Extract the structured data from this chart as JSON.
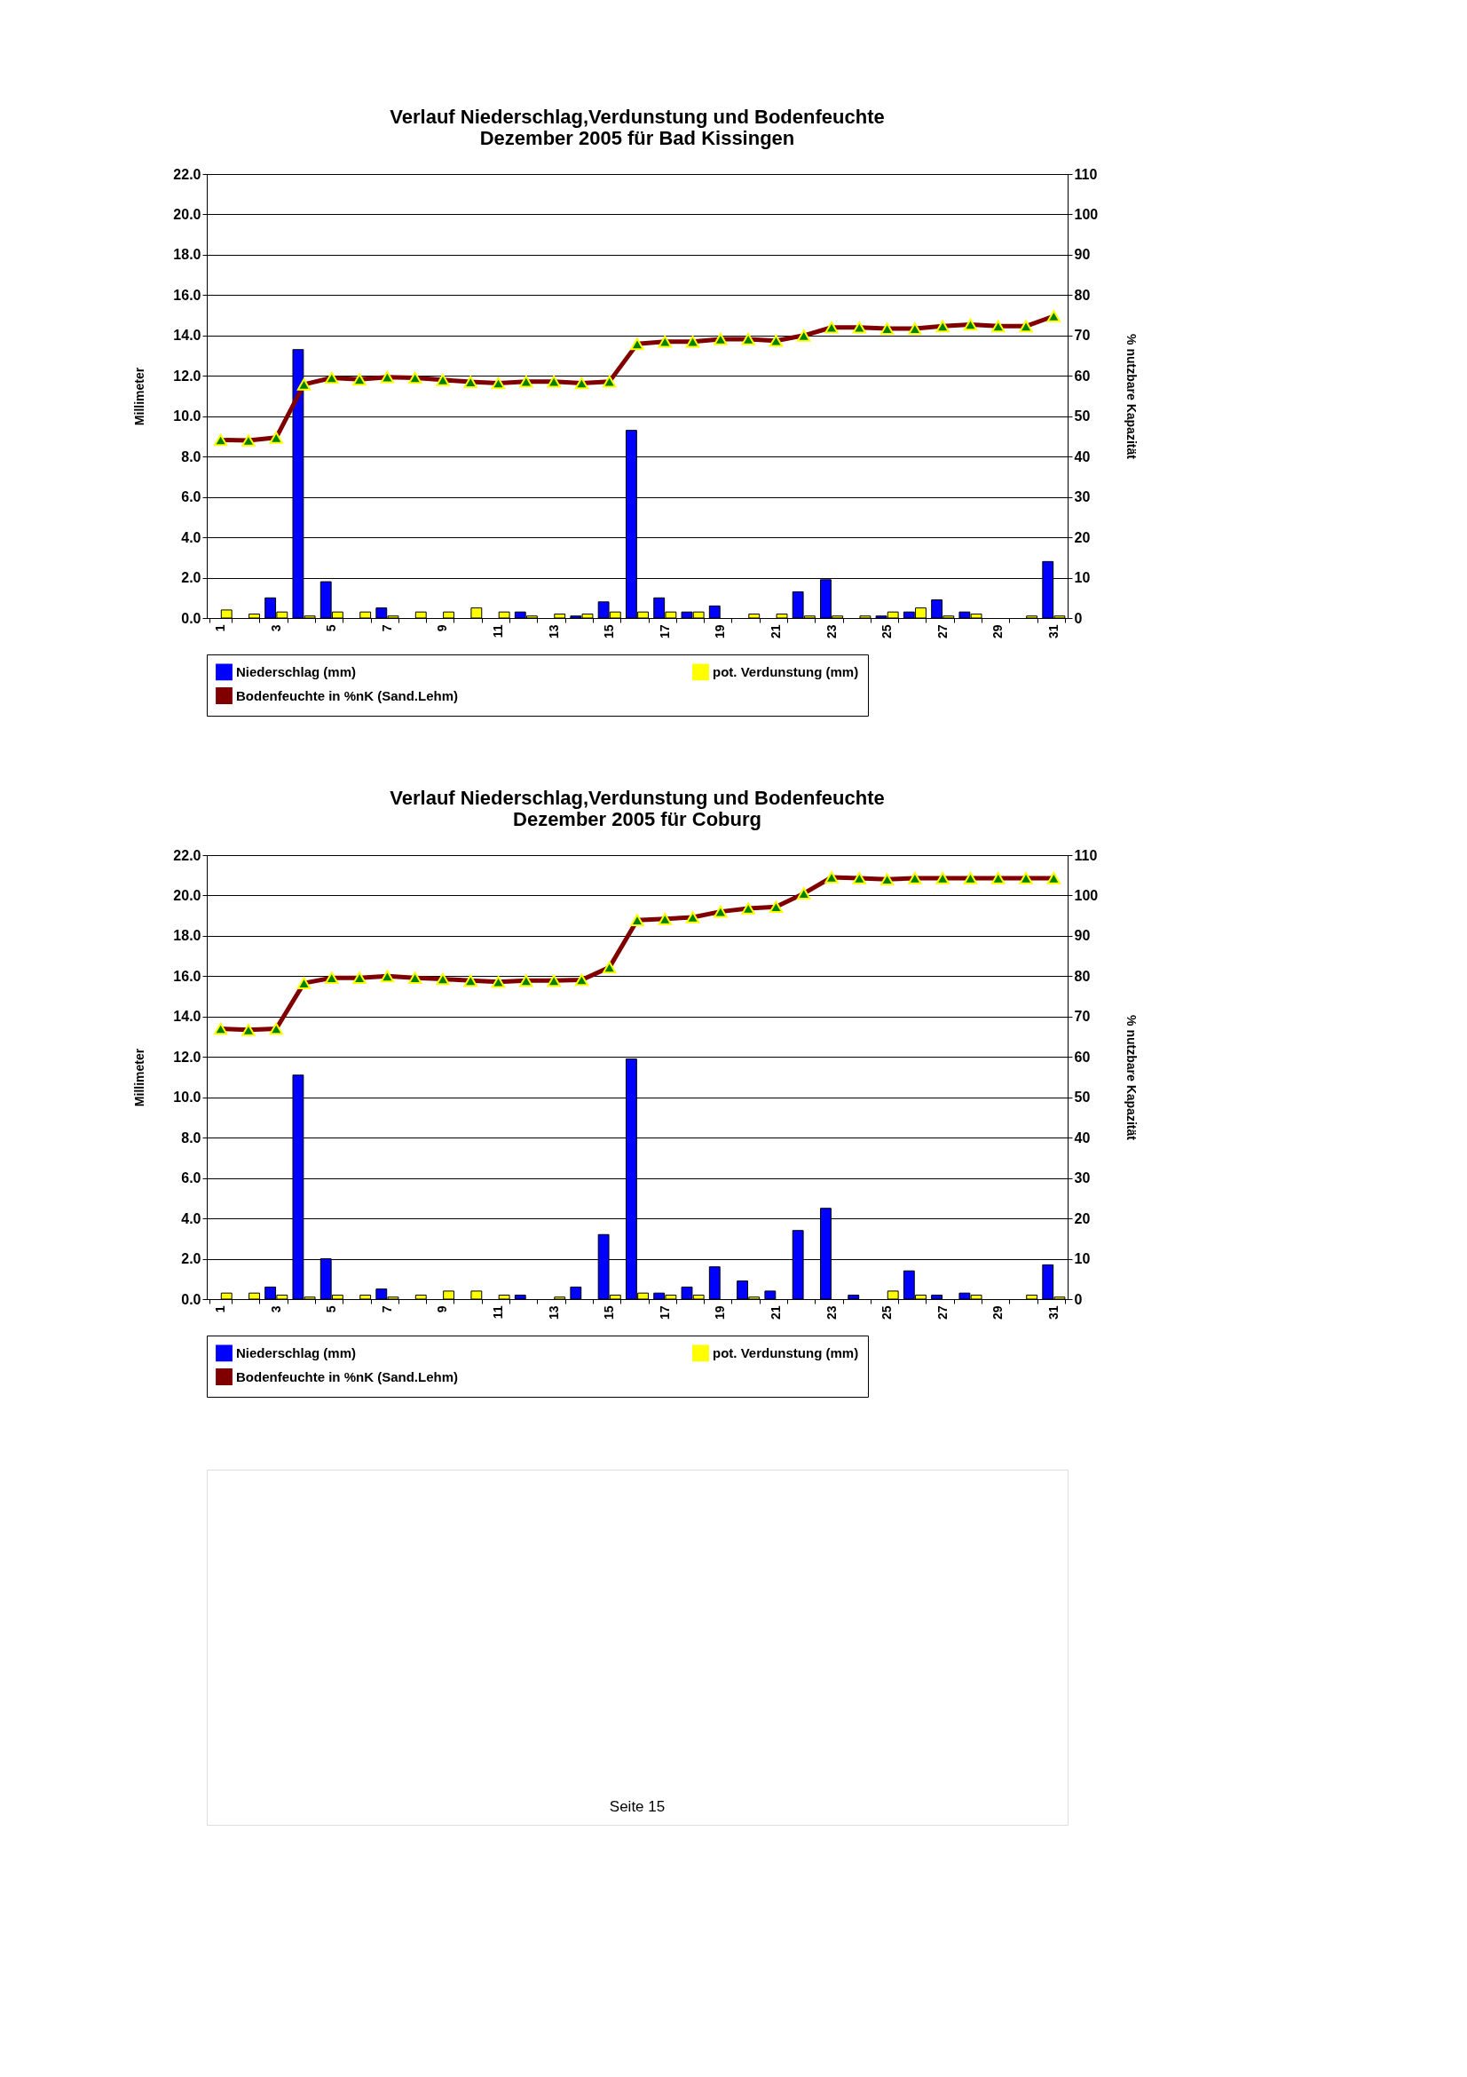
{
  "chart_data": [
    {
      "type": "bar",
      "title": "Verlauf Niederschlag,Verdunstung und Bodenfeuchte\nDezember  2005 für Bad Kissingen",
      "ylabel": "Millimeter",
      "y2label": "% nutzbare Kapazität",
      "categories": [
        "1",
        null,
        "3",
        null,
        "5",
        null,
        "7",
        null,
        "9",
        null,
        "11",
        null,
        "13",
        null,
        "15",
        null,
        "17",
        null,
        "19",
        null,
        "21",
        null,
        "23",
        null,
        "25",
        null,
        "27",
        null,
        "29",
        null,
        "31"
      ],
      "series": [
        {
          "name": "Niederschlag (mm)",
          "color": "#0000ff",
          "values": [
            0,
            0,
            1.0,
            13.3,
            1.8,
            0,
            0.5,
            0,
            0,
            0,
            0,
            0.3,
            0,
            0.1,
            0.8,
            9.3,
            1.0,
            0.3,
            0.6,
            0,
            0,
            1.3,
            1.9,
            0,
            0.1,
            0.3,
            0.9,
            0.3,
            0,
            0,
            2.8
          ]
        },
        {
          "name": "pot. Verdunstung (mm)",
          "color": "#ffff00",
          "values": [
            0.4,
            0.2,
            0.3,
            0.1,
            0.3,
            0.3,
            0.1,
            0.3,
            0.3,
            0.5,
            0.3,
            0.1,
            0.2,
            0.2,
            0.3,
            0.3,
            0.3,
            0.3,
            0,
            0.2,
            0.2,
            0.1,
            0.1,
            0.1,
            0.3,
            0.5,
            0.1,
            0.2,
            0,
            0.1,
            0.1
          ]
        },
        {
          "name": "Bodenfeuchte in %nK (Sand.Lehm)",
          "color": "#800000",
          "type": "line",
          "axis": "y2",
          "values": [
            44.1,
            44.0,
            44.7,
            57.9,
            59.5,
            59.1,
            59.7,
            59.5,
            59.0,
            58.5,
            58.2,
            58.6,
            58.6,
            58.2,
            58.6,
            67.9,
            68.5,
            68.5,
            69.1,
            69.1,
            68.7,
            70.0,
            72.0,
            72.0,
            71.7,
            71.7,
            72.3,
            72.7,
            72.3,
            72.3,
            74.8
          ]
        }
      ],
      "ylim": [
        0,
        22
      ],
      "yticks": [
        {
          "value": 0,
          "label": "0.0"
        },
        {
          "value": 2,
          "label": "2.0"
        },
        {
          "value": 4,
          "label": "4.0"
        },
        {
          "value": 6,
          "label": "6.0"
        },
        {
          "value": 8,
          "label": "8.0"
        },
        {
          "value": 10,
          "label": "10.0"
        },
        {
          "value": 12,
          "label": "12.0"
        },
        {
          "value": 14,
          "label": "14.0"
        },
        {
          "value": 16,
          "label": "16.0"
        },
        {
          "value": 18,
          "label": "18.0"
        },
        {
          "value": 20,
          "label": "20.0"
        },
        {
          "value": 22,
          "label": "22.0"
        }
      ],
      "y2lim": [
        0,
        110
      ],
      "y2ticks": [
        0,
        10,
        20,
        30,
        40,
        50,
        60,
        70,
        80,
        90,
        100,
        110
      ],
      "grid": "y",
      "legend": "bottom",
      "marker": "triangle"
    },
    {
      "type": "bar",
      "title": "Verlauf Niederschlag,Verdunstung und Bodenfeuchte\nDezember 2005 für Coburg",
      "ylabel": "Millimeter",
      "y2label": "% nutzbare Kapazität",
      "categories": [
        "1",
        null,
        "3",
        null,
        "5",
        null,
        "7",
        null,
        "9",
        null,
        "11",
        null,
        "13",
        null,
        "15",
        null,
        "17",
        null,
        "19",
        null,
        "21",
        null,
        "23",
        null,
        "25",
        null,
        "27",
        null,
        "29",
        null,
        "31"
      ],
      "series": [
        {
          "name": "Niederschlag (mm)",
          "color": "#0000ff",
          "values": [
            0,
            0,
            0.6,
            11.1,
            2.0,
            0,
            0.5,
            0,
            0,
            0,
            0,
            0.2,
            0,
            0.6,
            3.2,
            11.9,
            0.3,
            0.6,
            1.6,
            0.9,
            0.4,
            3.4,
            4.5,
            0.2,
            0,
            1.4,
            0.2,
            0.3,
            0,
            0,
            1.7
          ]
        },
        {
          "name": "pot. Verdunstung (mm)",
          "color": "#ffff00",
          "values": [
            0.3,
            0.3,
            0.2,
            0.1,
            0.2,
            0.2,
            0.1,
            0.2,
            0.4,
            0.4,
            0.2,
            0,
            0.1,
            0,
            0.2,
            0.3,
            0.2,
            0.2,
            0,
            0.1,
            0,
            0,
            0,
            0,
            0.4,
            0.2,
            0,
            0.2,
            0,
            0.2,
            0.1
          ]
        },
        {
          "name": "Bodenfeuchte in %nK (Sand.Lehm)",
          "color": "#800000",
          "type": "line",
          "axis": "y2",
          "values": [
            67.0,
            66.7,
            67.0,
            78.3,
            79.6,
            79.6,
            80.0,
            79.6,
            79.3,
            78.9,
            78.6,
            78.9,
            78.9,
            79.1,
            82.2,
            93.9,
            94.2,
            94.6,
            96.0,
            96.8,
            97.2,
            100.5,
            104.5,
            104.3,
            104.0,
            104.3,
            104.3,
            104.3,
            104.3,
            104.3,
            104.3
          ]
        }
      ],
      "ylim": [
        0,
        22
      ],
      "yticks": [
        {
          "value": 0,
          "label": "0.0"
        },
        {
          "value": 2,
          "label": "2.0"
        },
        {
          "value": 4,
          "label": "4.0"
        },
        {
          "value": 6,
          "label": "6.0"
        },
        {
          "value": 8,
          "label": "8.0"
        },
        {
          "value": 10,
          "label": "10.0"
        },
        {
          "value": 12,
          "label": "12.0"
        },
        {
          "value": 14,
          "label": "14.0"
        },
        {
          "value": 16,
          "label": "16.0"
        },
        {
          "value": 18,
          "label": "18.0"
        },
        {
          "value": 20,
          "label": "20.0"
        },
        {
          "value": 22,
          "label": "22.0"
        }
      ],
      "y2lim": [
        0,
        110
      ],
      "y2ticks": [
        0,
        10,
        20,
        30,
        40,
        50,
        60,
        70,
        80,
        90,
        100,
        110
      ],
      "grid": "y",
      "legend": "bottom",
      "marker": "triangle",
      "annotations": [
        "Seite 15"
      ]
    }
  ]
}
